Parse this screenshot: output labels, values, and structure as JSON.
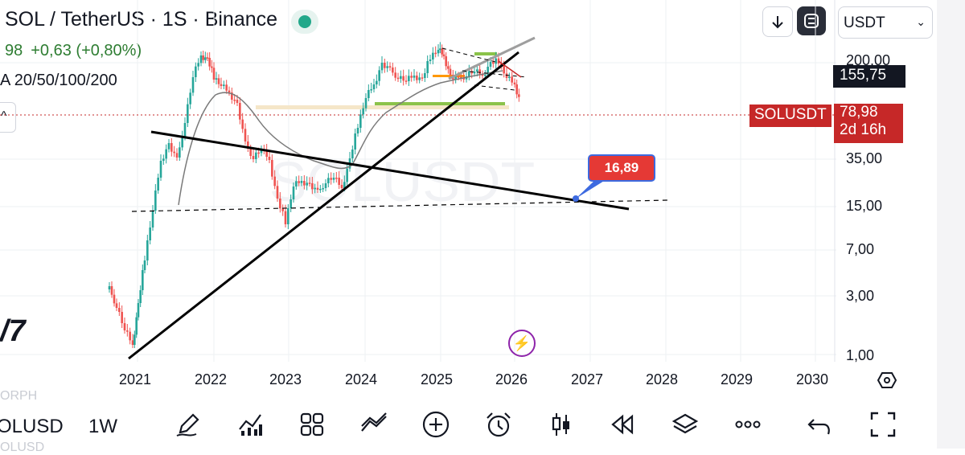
{
  "header": {
    "title": "SOL / TetherUS · 1S · Binance",
    "ohlc_price": "98",
    "ohlc_change": "+0,63 (+0,80%)",
    "ma_label": "A 20/50/100/200",
    "currency": "USDT"
  },
  "price_axis": {
    "labels": [
      "200,00",
      "35,00",
      "15,00",
      "7,00",
      "3,00",
      "1,00"
    ],
    "high_tag": "155,75",
    "symbol_tag": "SOLUSDT",
    "current_price": "78,98",
    "countdown": "2d 16h"
  },
  "time_axis": {
    "labels": [
      "2021",
      "2022",
      "2023",
      "2024",
      "2025",
      "2026",
      "2027",
      "2028",
      "2029",
      "2030"
    ]
  },
  "annotation": {
    "callout_value": "16,89"
  },
  "watermark": "SOLUSDT",
  "bottom_bar": {
    "symbol": "OLUSD",
    "timeframe": "1W",
    "ghost_top": "ORPH",
    "ghost_bottom": "OLUSD"
  },
  "icons": {
    "download": "arrow-down-icon",
    "fullscreen": "rounded-square-icon",
    "settings": "gear-icon",
    "bolt": "lightning-icon",
    "tools": [
      "pencil-icon",
      "indicators-icon",
      "grid-icon",
      "trend-line-icon",
      "add-circle-icon",
      "alarm-icon",
      "candles-icon",
      "replay-icon",
      "layers-icon",
      "more-icon",
      "undo-icon",
      "fullscreen-corners-icon"
    ]
  },
  "colors": {
    "up": "#26a69a",
    "down": "#ef5350",
    "accent_red": "#c62828",
    "callout": "#e53935",
    "callout_border": "#3d6ae0",
    "live": "#22a88a",
    "bolt": "#8e24aa"
  }
}
